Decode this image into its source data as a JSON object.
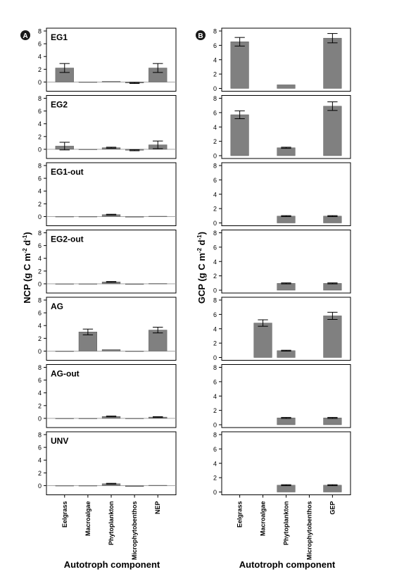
{
  "figure": {
    "left_panel_label": "A",
    "right_panel_label": "B",
    "left_ylabel_main": "NCP (g C m",
    "left_ylabel_sup1": "-2",
    "left_ylabel_mid": " d",
    "left_ylabel_sup2": "-1",
    "left_ylabel_end": ")",
    "right_ylabel_main": "GCP (g C m",
    "right_ylabel_sup1": "-2",
    "right_ylabel_mid": " d",
    "right_ylabel_sup2": "-1",
    "right_ylabel_end": ")",
    "left_xlabel": "Autotroph component",
    "right_xlabel": "Autotroph component"
  },
  "colors": {
    "bar": "#808080",
    "bar_stroke": "#5a5a5a",
    "axis": "#000000",
    "zero_line": "#9a9a9a",
    "badge": "#1a1a1a"
  },
  "chart_data": [
    {
      "type": "bar",
      "panel": "A",
      "metric": "NCP",
      "categories": [
        "Eelgrass",
        "Macroalgae",
        "Phytoplankton",
        "Microphytobenthos",
        "NEP"
      ],
      "ylim": [
        -1,
        8
      ],
      "yticks": [
        0,
        2,
        4,
        6,
        8
      ],
      "subplots": [
        {
          "name": "EG1",
          "values": [
            2.2,
            -0.02,
            0.1,
            -0.15,
            2.2
          ],
          "errors": [
            0.7,
            0.03,
            0.05,
            0.08,
            0.7
          ]
        },
        {
          "name": "EG2",
          "values": [
            0.5,
            -0.02,
            0.25,
            -0.15,
            0.7
          ],
          "errors": [
            0.6,
            0.03,
            0.08,
            0.08,
            0.6
          ]
        },
        {
          "name": "EG1-out",
          "values": [
            0.0,
            0.0,
            0.3,
            -0.1,
            0.05
          ],
          "errors": [
            0.02,
            0.02,
            0.06,
            0.05,
            0.05
          ]
        },
        {
          "name": "EG2-out",
          "values": [
            0.0,
            0.0,
            0.3,
            -0.1,
            0.05
          ],
          "errors": [
            0.02,
            0.02,
            0.06,
            0.05,
            0.05
          ]
        },
        {
          "name": "AG",
          "values": [
            0.0,
            3.0,
            0.25,
            -0.05,
            3.3
          ],
          "errors": [
            0.02,
            0.45,
            0.05,
            0.03,
            0.45
          ]
        },
        {
          "name": "AG-out",
          "values": [
            0.0,
            0.0,
            0.3,
            -0.05,
            0.2
          ],
          "errors": [
            0.02,
            0.02,
            0.06,
            0.03,
            0.06
          ]
        },
        {
          "name": "UNV",
          "values": [
            0.0,
            0.0,
            0.3,
            -0.15,
            0.05
          ],
          "errors": [
            0.02,
            0.02,
            0.06,
            0.05,
            0.05
          ]
        }
      ]
    },
    {
      "type": "bar",
      "panel": "B",
      "metric": "GCP",
      "categories": [
        "Eelgrass",
        "Macroalgae",
        "Phytoplankton",
        "Microphytobenthos",
        "GEP"
      ],
      "ylim": [
        0,
        8
      ],
      "yticks": [
        0,
        2,
        4,
        6,
        8
      ],
      "subplots": [
        {
          "name": "",
          "values": [
            6.5,
            0.0,
            0.5,
            0.0,
            7.0
          ],
          "errors": [
            0.6,
            0.0,
            0.05,
            0.0,
            0.65
          ]
        },
        {
          "name": "",
          "values": [
            5.7,
            0.0,
            1.1,
            0.0,
            6.9
          ],
          "errors": [
            0.55,
            0.0,
            0.08,
            0.0,
            0.6
          ]
        },
        {
          "name": "",
          "values": [
            0.0,
            0.0,
            0.95,
            0.0,
            0.95
          ],
          "errors": [
            0.0,
            0.0,
            0.07,
            0.0,
            0.07
          ]
        },
        {
          "name": "",
          "values": [
            0.0,
            0.0,
            0.95,
            0.0,
            0.95
          ],
          "errors": [
            0.0,
            0.0,
            0.07,
            0.0,
            0.07
          ]
        },
        {
          "name": "",
          "values": [
            0.0,
            4.8,
            0.95,
            0.0,
            5.8
          ],
          "errors": [
            0.0,
            0.45,
            0.06,
            0.0,
            0.5
          ]
        },
        {
          "name": "",
          "values": [
            0.0,
            0.0,
            0.95,
            0.0,
            0.95
          ],
          "errors": [
            0.0,
            0.0,
            0.07,
            0.0,
            0.07
          ]
        },
        {
          "name": "",
          "values": [
            0.0,
            0.0,
            0.95,
            0.0,
            0.95
          ],
          "errors": [
            0.0,
            0.0,
            0.07,
            0.0,
            0.07
          ]
        }
      ]
    }
  ]
}
